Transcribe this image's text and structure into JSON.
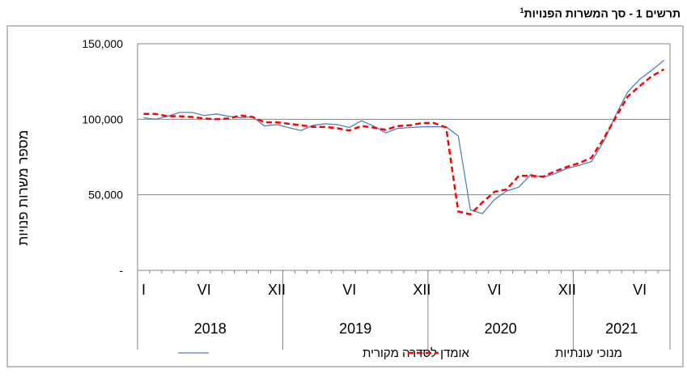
{
  "title_text": "תרשים 1 - סך המשרות הפנויות",
  "title_footnote": "1",
  "chart_data": {
    "type": "line",
    "ylabel": "מספר משרות פנויות",
    "ylim": [
      0,
      150000
    ],
    "yticks": [
      0,
      50000,
      100000,
      150000
    ],
    "ytick_labels": [
      "-",
      "50,000",
      "100,000",
      "150,000"
    ],
    "grid": "horizontal",
    "legend_position": "bottom",
    "x_period_labels": [
      {
        "label": "I",
        "month": 1
      },
      {
        "label": "VI",
        "month": 6
      },
      {
        "label": "XII",
        "month": 12
      },
      {
        "label": "VI",
        "month": 18
      },
      {
        "label": "XII",
        "month": 24
      },
      {
        "label": "VI",
        "month": 30
      },
      {
        "label": "XII",
        "month": 36
      },
      {
        "label": "VI",
        "month": 42
      }
    ],
    "years": [
      {
        "label": "2018",
        "from": 1,
        "to": 12
      },
      {
        "label": "2019",
        "from": 13,
        "to": 24
      },
      {
        "label": "2020",
        "from": 25,
        "to": 36
      },
      {
        "label": "2021",
        "from": 37,
        "to": 44
      }
    ],
    "series": [
      {
        "name": "אומדן לסדרה מקורית",
        "color": "#4f81bd",
        "style": "solid",
        "values": [
          101000,
          100000,
          102000,
          104500,
          104500,
          102500,
          103500,
          102000,
          101000,
          101500,
          95500,
          96500,
          94500,
          92500,
          96000,
          97000,
          96500,
          94500,
          99000,
          95500,
          91000,
          94000,
          94500,
          95000,
          95000,
          95000,
          89000,
          40000,
          37500,
          47000,
          52500,
          55000,
          63500,
          61500,
          64000,
          67500,
          69500,
          72000,
          85000,
          102500,
          118000,
          126500,
          132500,
          139000
        ]
      },
      {
        "name": "מנוכי עונתיות",
        "color": "#ff0000",
        "style": "dashed",
        "values": [
          103500,
          103500,
          102000,
          102000,
          101500,
          100500,
          100000,
          100500,
          102500,
          101500,
          98000,
          98000,
          97000,
          96000,
          95000,
          95000,
          94000,
          92500,
          95500,
          94500,
          93000,
          95500,
          96000,
          97500,
          97500,
          94500,
          39000,
          37000,
          45000,
          52000,
          53500,
          62500,
          62500,
          62000,
          65500,
          68500,
          71000,
          74500,
          87000,
          101000,
          115000,
          122000,
          128500,
          133000
        ]
      }
    ]
  }
}
